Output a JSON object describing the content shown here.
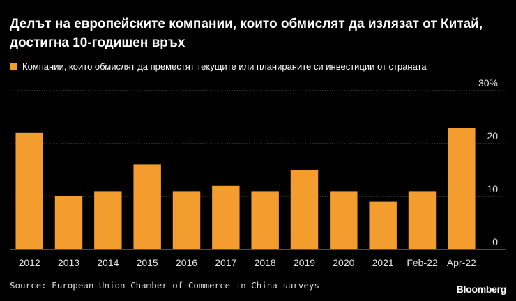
{
  "header": {
    "title": "Делът на европейските компании, които обмислят да излязат от Китай, достигна 10-годишен връх"
  },
  "legend": {
    "label": "Компании, които обмислят да преместят текущите или планираните си инвестиции от страната",
    "color": "#f29d2d"
  },
  "colors": {
    "bar": "#f29d2d",
    "grid": "#7a7a7a",
    "axis_text": "#e6e6e6",
    "background": "#000000"
  },
  "chart_data": {
    "type": "bar",
    "title": "Делът на европейските компании, които обмислят да излязат от Китай, достигна 10-годишен връх",
    "xlabel": "",
    "ylabel": "",
    "ylim": [
      0,
      30
    ],
    "y_ticks": [
      0,
      10,
      20,
      30
    ],
    "y_tick_labels": [
      "0",
      "10",
      "20",
      "30%"
    ],
    "grid": true,
    "legend_position": "top-left",
    "categories": [
      "2012",
      "2013",
      "2014",
      "2015",
      "2016",
      "2017",
      "2018",
      "2019",
      "2020",
      "2021",
      "Feb-22",
      "Apr-22"
    ],
    "series": [
      {
        "name": "Компании, които обмислят да преместят текущите или планираните си инвестиции от страната",
        "values": [
          22,
          10,
          11,
          16,
          11,
          12,
          11,
          15,
          11,
          9,
          11,
          23
        ]
      }
    ]
  },
  "footer": {
    "source": "Source: European Union Chamber of Commerce in China surveys",
    "brand": "Bloomberg"
  }
}
